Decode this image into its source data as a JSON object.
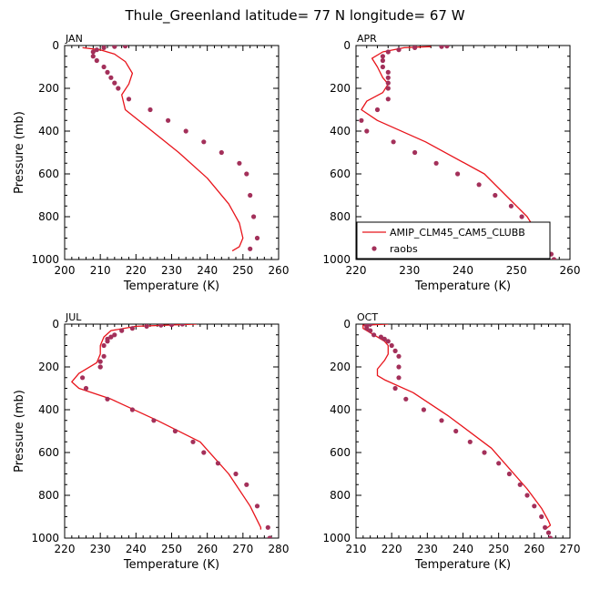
{
  "figure": {
    "title": "Thule_Greenland  latitude= 77 N longitude= 67 W"
  },
  "colors": {
    "model_line": "#e8141b",
    "obs_marker": "#a3305a",
    "axes": "#000000"
  },
  "legend": {
    "placement": "lower-right of APR panel",
    "entries": [
      {
        "label": "AMIP_CLM45_CAM5_CLUBB",
        "style": "line"
      },
      {
        "label": "raobs",
        "style": "marker"
      }
    ]
  },
  "chart_data": [
    {
      "type": "line",
      "panel_label": "JAN",
      "xlabel": "Temperature (K)",
      "ylabel": "Pressure (mb)",
      "xlim": [
        200,
        260
      ],
      "ylim": [
        0,
        1000
      ],
      "y_inverted": true,
      "xticks": [
        200,
        210,
        220,
        230,
        240,
        250,
        260
      ],
      "yticks": [
        0,
        200,
        400,
        600,
        800,
        1000
      ],
      "series": [
        {
          "name": "AMIP_CLM45_CAM5_CLUBB",
          "style": "line",
          "x": [
            205,
            210,
            214,
            217,
            219,
            218,
            216,
            217,
            223,
            232,
            240,
            246,
            249,
            250,
            249,
            247
          ],
          "y": [
            10,
            20,
            40,
            75,
            130,
            180,
            230,
            300,
            380,
            500,
            620,
            740,
            830,
            900,
            940,
            960
          ]
        },
        {
          "name": "raobs",
          "style": "marker",
          "x": [
            217,
            214,
            211,
            209,
            208,
            208,
            209,
            211,
            212,
            213,
            214,
            215,
            218,
            224,
            229,
            234,
            239,
            244,
            249,
            251,
            252,
            253,
            254,
            252
          ],
          "y": [
            3,
            5,
            10,
            20,
            30,
            50,
            70,
            100,
            125,
            150,
            175,
            200,
            250,
            300,
            350,
            400,
            450,
            500,
            550,
            600,
            700,
            800,
            900,
            950
          ]
        }
      ]
    },
    {
      "type": "line",
      "panel_label": "APR",
      "xlabel": "Temperature (K)",
      "ylabel": "",
      "xlim": [
        220,
        260
      ],
      "ylim": [
        0,
        1000
      ],
      "y_inverted": true,
      "xticks": [
        220,
        230,
        240,
        250,
        260
      ],
      "yticks": [
        0,
        200,
        400,
        600,
        800,
        1000
      ],
      "series": [
        {
          "name": "AMIP_CLM45_CAM5_CLUBB",
          "style": "line",
          "x": [
            234,
            229,
            225,
            223,
            224,
            225,
            226,
            225,
            222,
            221,
            224,
            233,
            244,
            252,
            254.5,
            255,
            254
          ],
          "y": [
            5,
            10,
            30,
            60,
            100,
            150,
            180,
            220,
            260,
            300,
            350,
            450,
            600,
            800,
            900,
            950,
            970
          ]
        },
        {
          "name": "raobs",
          "style": "marker",
          "x": [
            237,
            236,
            231,
            228,
            226,
            225,
            225,
            225,
            226,
            226,
            226,
            226,
            226,
            224,
            221,
            222,
            227,
            231,
            235,
            239,
            243,
            246,
            249,
            251,
            253,
            254,
            255,
            256.5,
            257,
            257
          ],
          "y": [
            3,
            5,
            10,
            20,
            30,
            50,
            70,
            100,
            125,
            150,
            175,
            200,
            250,
            300,
            350,
            400,
            450,
            500,
            550,
            600,
            650,
            700,
            750,
            800,
            850,
            900,
            950,
            975,
            1000,
            1000
          ]
        }
      ]
    },
    {
      "type": "line",
      "panel_label": "JUL",
      "xlabel": "Temperature (K)",
      "ylabel": "Pressure (mb)",
      "xlim": [
        220,
        280
      ],
      "ylim": [
        0,
        1000
      ],
      "y_inverted": true,
      "xticks": [
        220,
        230,
        240,
        250,
        260,
        270,
        280
      ],
      "yticks": [
        0,
        200,
        400,
        600,
        800,
        1000
      ],
      "series": [
        {
          "name": "AMIP_CLM45_CAM5_CLUBB",
          "style": "line",
          "x": [
            257,
            240,
            233,
            231,
            230,
            230,
            229,
            224,
            222,
            224,
            233,
            246,
            258,
            266,
            272,
            275,
            275
          ],
          "y": [
            0,
            10,
            30,
            60,
            100,
            140,
            180,
            230,
            270,
            300,
            350,
            450,
            550,
            700,
            850,
            950,
            960
          ]
        },
        {
          "name": "raobs",
          "style": "marker",
          "x": [
            253,
            250,
            247,
            243,
            239,
            236,
            234,
            233,
            232,
            232,
            231,
            231,
            230,
            230,
            230,
            225,
            226,
            232,
            239,
            245,
            251,
            256,
            259,
            263,
            268,
            271,
            274,
            277,
            277.5
          ],
          "y": [
            0,
            3,
            5,
            10,
            20,
            30,
            50,
            60,
            70,
            80,
            100,
            150,
            175,
            200,
            200,
            250,
            300,
            350,
            400,
            450,
            500,
            550,
            600,
            650,
            700,
            750,
            850,
            950,
            1000
          ]
        }
      ]
    },
    {
      "type": "line",
      "panel_label": "OCT",
      "xlabel": "Temperature (K)",
      "ylabel": "",
      "xlim": [
        210,
        270
      ],
      "ylim": [
        0,
        1000
      ],
      "y_inverted": true,
      "xticks": [
        210,
        220,
        230,
        240,
        250,
        260,
        270
      ],
      "yticks": [
        0,
        200,
        400,
        600,
        800,
        1000
      ],
      "series": [
        {
          "name": "AMIP_CLM45_CAM5_CLUBB",
          "style": "line",
          "x": [
            219,
            212,
            212,
            214,
            216,
            218,
            219,
            219,
            218,
            216,
            216,
            218,
            226,
            236,
            248,
            258,
            262,
            264,
            264.5,
            263
          ],
          "y": [
            0,
            5,
            20,
            40,
            60,
            80,
            100,
            140,
            170,
            210,
            240,
            260,
            320,
            430,
            580,
            770,
            860,
            920,
            940,
            960
          ]
        },
        {
          "name": "raobs",
          "style": "marker",
          "x": [
            214,
            213,
            213,
            213,
            214,
            215,
            217,
            218,
            219,
            220,
            221,
            222,
            222,
            222,
            221,
            224,
            229,
            234,
            238,
            242,
            246,
            250,
            253,
            256,
            258,
            260,
            262,
            263,
            264,
            264.5
          ],
          "y": [
            0,
            3,
            10,
            20,
            30,
            50,
            60,
            70,
            80,
            100,
            125,
            150,
            200,
            250,
            300,
            350,
            400,
            450,
            500,
            550,
            600,
            650,
            700,
            750,
            800,
            850,
            900,
            950,
            975,
            1000
          ]
        }
      ]
    }
  ]
}
